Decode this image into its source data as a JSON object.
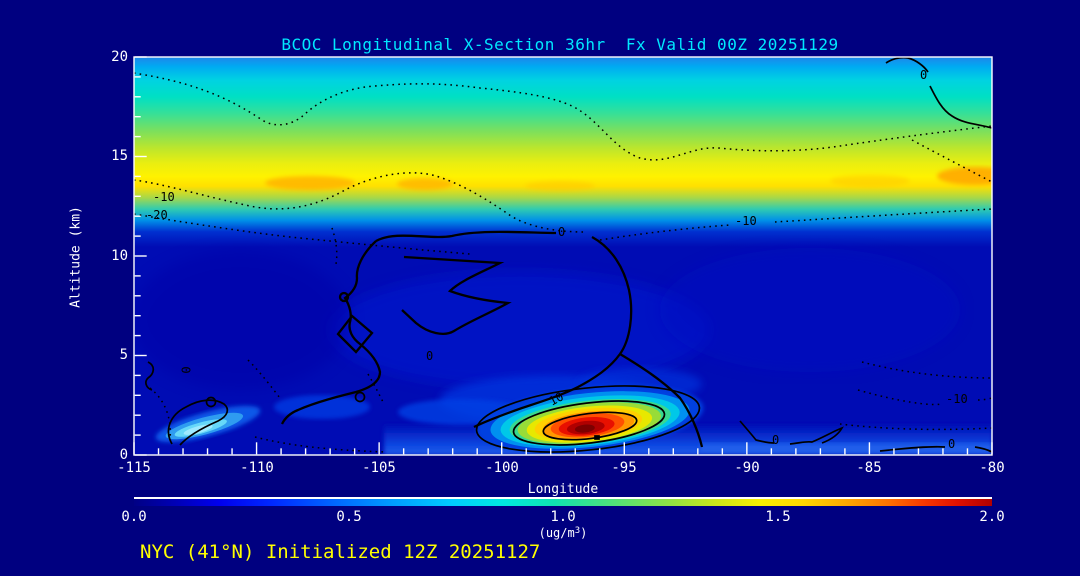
{
  "title": "BCOC Longitudinal X-Section 36hr  Fx Valid 00Z 20251129",
  "footer": "NYC (41°N) Initialized 12Z 20251127",
  "axes": {
    "y": {
      "label": "Altitude (km)",
      "ticks": [
        "20",
        "15",
        "10",
        "5",
        "0"
      ]
    },
    "x": {
      "label": "Longitude",
      "ticks": [
        "-115",
        "-110",
        "-105",
        "-100",
        "-95",
        "-90",
        "-85",
        "-80"
      ]
    }
  },
  "colorbar": {
    "ticks": [
      "0.0",
      "0.5",
      "1.0",
      "1.5",
      "2.0"
    ],
    "unit_prefix": "(ug/m",
    "unit_sup": "3",
    "unit_suffix": ")",
    "gradient": [
      "#000085",
      "#0000ee",
      "#0064ff",
      "#00ccff",
      "#00e8e0",
      "#48e080",
      "#cce818",
      "#f8f000",
      "#ffd800",
      "#ffa800",
      "#ff7000",
      "#e01000",
      "#b00000"
    ]
  },
  "plot": {
    "contour_labels": [
      {
        "text": "-10"
      },
      {
        "text": "-20"
      },
      {
        "text": "-10"
      },
      {
        "text": "0"
      },
      {
        "text": "0"
      },
      {
        "text": "0"
      },
      {
        "text": "0"
      },
      {
        "text": "10"
      },
      {
        "text": "0"
      },
      {
        "text": "-10"
      },
      {
        "text": "0"
      }
    ]
  },
  "colors": {
    "background": "#000080",
    "plot_low_value_blue": "#000cb4",
    "title": "#00e8ff",
    "axis_text": "#ffffff",
    "footer": "#ffff00",
    "contour_lines": "#000000",
    "plume_max": "#7c0000",
    "upper_band_peak": "#ffd800"
  },
  "chart_data": {
    "type": "heatmap",
    "title": "BCOC Longitudinal X-Section 36hr  Fx Valid 00Z 20251129",
    "subtitle": "NYC (41°N) Initialized 12Z 20251127",
    "xlabel": "Longitude",
    "ylabel": "Altitude (km)",
    "xlim": [
      -115,
      -80
    ],
    "ylim": [
      0,
      20
    ],
    "colorbar_label": "(ug/m3)",
    "colorbar_range": [
      0.0,
      2.0
    ],
    "colorbar_ticks": [
      0.0,
      0.5,
      1.0,
      1.5,
      2.0
    ],
    "x": [
      -115,
      -110,
      -105,
      -100,
      -95,
      -90,
      -85,
      -80
    ],
    "altitudes_km": [
      1,
      3,
      6,
      9,
      12,
      14,
      16,
      18,
      20
    ],
    "values_ug_m3_by_altitude": [
      [
        0.15,
        0.5,
        0.2,
        0.3,
        1.9,
        0.3,
        0.25,
        0.3
      ],
      [
        0.1,
        0.15,
        0.3,
        0.25,
        0.4,
        0.2,
        0.1,
        0.1
      ],
      [
        0.1,
        0.1,
        0.15,
        0.2,
        0.2,
        0.15,
        0.1,
        0.1
      ],
      [
        0.1,
        0.1,
        0.15,
        0.15,
        0.15,
        0.1,
        0.1,
        0.1
      ],
      [
        0.3,
        0.3,
        0.25,
        0.3,
        0.3,
        0.3,
        0.35,
        0.4
      ],
      [
        1.05,
        1.2,
        1.1,
        1.15,
        1.1,
        1.05,
        1.0,
        1.2
      ],
      [
        0.75,
        0.7,
        0.7,
        0.75,
        0.7,
        0.7,
        0.7,
        0.75
      ],
      [
        0.6,
        0.55,
        0.55,
        0.6,
        0.6,
        0.6,
        0.6,
        0.6
      ],
      [
        0.5,
        0.45,
        0.5,
        0.55,
        0.55,
        0.55,
        0.5,
        0.45
      ]
    ],
    "features": [
      {
        "name": "surface plume maximum",
        "longitude": -96.5,
        "altitude_km": 1.5,
        "value_ug_m3": 2.0
      },
      {
        "name": "upper-level band",
        "altitude_km_range": [
          12.5,
          15.5
        ],
        "value_ug_m3_range": [
          0.9,
          1.3
        ]
      },
      {
        "name": "low-level cyan streak",
        "longitude": -112,
        "altitude_km": 1.5,
        "value_ug_m3": 0.5
      }
    ],
    "overlay_contours": {
      "labeled_values": [
        -20,
        -10,
        0,
        10
      ],
      "style": "negative values dotted, zero and positive solid black"
    },
    "legend_position": "horizontal colorbar below x-axis",
    "grid": false
  }
}
